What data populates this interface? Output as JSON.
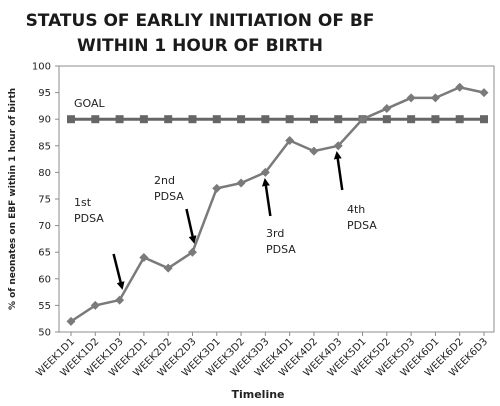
{
  "chart_data": {
    "type": "line",
    "title": [
      "STATUS OF EARLIY INITIATION OF BF",
      "WITHIN 1 HOUR OF BIRTH"
    ],
    "xlabel": "Timeline",
    "ylabel": "% of neonates on EBF within 1 hour of birth",
    "categories": [
      "WEEK1D1",
      "WEEK1D2",
      "WEEK1D3",
      "WEEK2D1",
      "WEEK2D2",
      "WEEK2D3",
      "WEEK3D1",
      "WEEK3D2",
      "WEEK3D3",
      "WEEK4D1",
      "WEEK4D2",
      "WEEK4D3",
      "WEEK5D1",
      "WEEK5D2",
      "WEEK5D3",
      "WEEK6D1",
      "WEEK6D2",
      "WEEK6D3"
    ],
    "series": [
      {
        "values": [
          52,
          55,
          56,
          64,
          62,
          65,
          77,
          78,
          80,
          86,
          84,
          85,
          90,
          92,
          94,
          94,
          96,
          95
        ],
        "color": "#7a7a7a",
        "marker": "diamond"
      },
      {
        "name": "GOAL",
        "values": [
          90,
          90,
          90,
          90,
          90,
          90,
          90,
          90,
          90,
          90,
          90,
          90,
          90,
          90,
          90,
          90,
          90,
          90
        ],
        "color": "#666666",
        "marker": "square"
      }
    ],
    "ylim": [
      50,
      100
    ],
    "yticks": [
      50,
      55,
      60,
      65,
      70,
      75,
      80,
      85,
      90,
      95,
      100
    ],
    "grid": false,
    "annotations": [
      {
        "text": [
          "1st",
          "PDSA"
        ],
        "at_category": "WEEK1D3",
        "arrow": "down"
      },
      {
        "text": [
          "2nd",
          "PDSA"
        ],
        "at_category": "WEEK2D3",
        "arrow": "down"
      },
      {
        "text": [
          "3rd",
          "PDSA"
        ],
        "at_category": "WEEK3D3",
        "arrow": "up"
      },
      {
        "text": [
          "4th",
          "PDSA"
        ],
        "at_category": "WEEK4D3",
        "arrow": "up"
      }
    ]
  }
}
